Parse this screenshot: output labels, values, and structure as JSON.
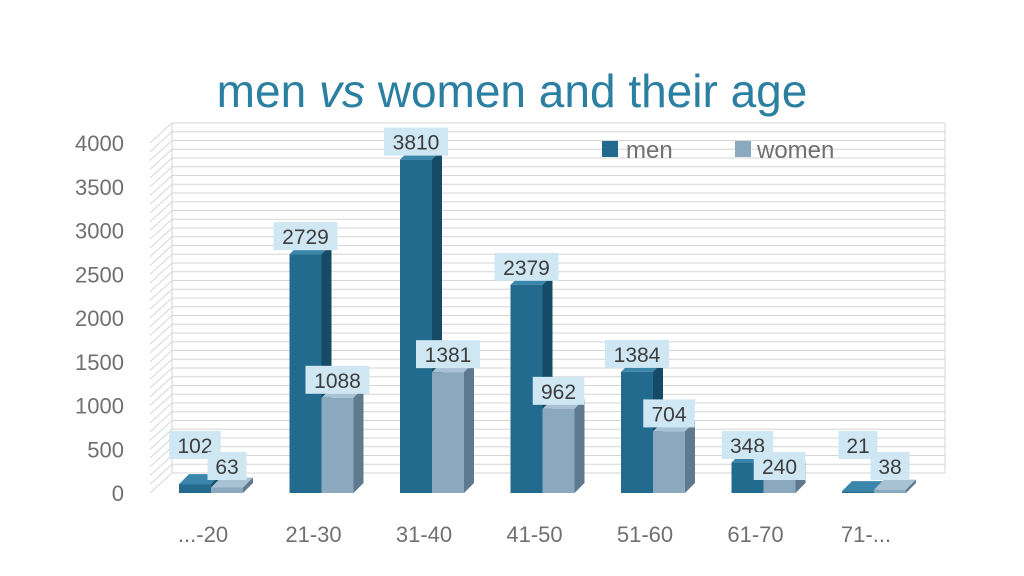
{
  "chart_data": {
    "type": "bar",
    "title": {
      "part1": "men ",
      "part2": "vs",
      "part3": " women and their age"
    },
    "xlabel": "",
    "ylabel": "",
    "categories": [
      "...-20",
      "21-30",
      "31-40",
      "41-50",
      "51-60",
      "61-70",
      "71-..."
    ],
    "series": [
      {
        "name": "men",
        "values": [
          102,
          2729,
          3810,
          2379,
          1384,
          348,
          21
        ]
      },
      {
        "name": "women",
        "values": [
          63,
          1088,
          1381,
          962,
          704,
          240,
          38
        ]
      }
    ],
    "ylim": [
      0,
      4000
    ],
    "yticks": [
      0,
      500,
      1000,
      1500,
      2000,
      2500,
      3000,
      3500,
      4000
    ],
    "grid": true,
    "legend_position": "top-right",
    "colors": {
      "title": "#2b7fa0",
      "men_front": "#236b8e",
      "men_side": "#154b66",
      "men_top": "#3a86ab",
      "women_front": "#8aa9bf",
      "women_side": "#5f7a8e",
      "women_top": "#a8c2d4",
      "label_bg": "#cfe7f3",
      "grid": "#d6d6d6"
    }
  }
}
